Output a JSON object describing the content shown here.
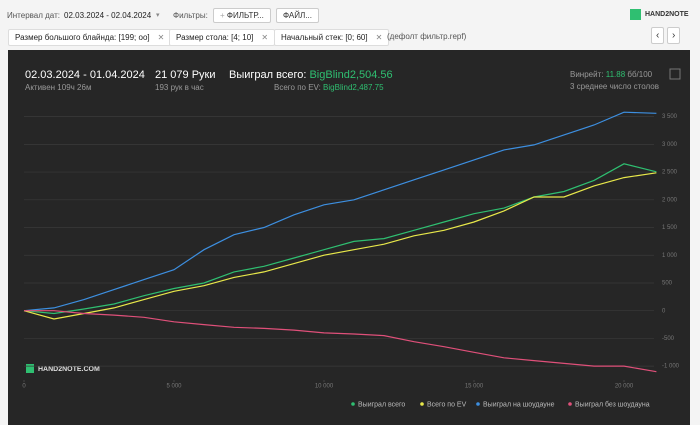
{
  "toolbar": {
    "date_label": "Интервал дат:",
    "date_range": "02.03.2024 - 02.04.2024",
    "filters_label": "Фильтры:",
    "filter_button": "ФИЛЬТР...",
    "file_button": "ФАЙЛ...",
    "logo": "HAND2NOTE"
  },
  "filters": {
    "chips": [
      "Размер большого блайнда: [199; oo]",
      "Размер стола: [4; 10]",
      "Начальный стек: [0; 60]"
    ],
    "preset": "(дефолт фильтр.repf)"
  },
  "summary": {
    "period": "02.03.2024 - 01.04.2024",
    "active": "Активен 109ч 26м",
    "hands": "21 079 Руки",
    "hands_per_hour": "193 рук в час",
    "won_label": "Выиграл всего:",
    "won_value": "BigBlind2,504.56",
    "ev_label": "Всего по EV:",
    "ev_value": "BigBlind2,487.75",
    "winrate_label": "Винрейт:",
    "winrate_value": "11.88",
    "winrate_unit": "бб/100",
    "tables": "3 среднее число столов"
  },
  "chart_data": {
    "type": "line",
    "watermark": "HAND2NOTE.COM",
    "x": [
      0,
      1000,
      2000,
      3000,
      4000,
      5000,
      6000,
      7000,
      8000,
      9000,
      10000,
      11000,
      12000,
      13000,
      14000,
      15000,
      16000,
      17000,
      18000,
      19000,
      20000,
      21079
    ],
    "xlim": [
      0,
      21200
    ],
    "xticks": [
      0,
      {
        "value": 5000,
        "label": "5 000"
      },
      {
        "value": 10000,
        "label": "10 000"
      },
      {
        "value": 15000,
        "label": "15 000"
      },
      {
        "value": 20000,
        "label": "20 000"
      }
    ],
    "ylim": [
      -1250,
      3800
    ],
    "yticks": [
      {
        "value": -1000,
        "label": "-1 000"
      },
      -500,
      0,
      500,
      {
        "value": 1000,
        "label": "1 000"
      },
      {
        "value": 1500,
        "label": "1 500"
      },
      {
        "value": 2000,
        "label": "2 000"
      },
      {
        "value": 2500,
        "label": "2 500"
      },
      {
        "value": 3000,
        "label": "3 000"
      },
      {
        "value": 3500,
        "label": "3 500"
      }
    ],
    "grid": true,
    "series": [
      {
        "name": "Выиграл всего",
        "color": "#2fbf71",
        "values": [
          0,
          -50,
          30,
          120,
          270,
          400,
          500,
          700,
          800,
          950,
          1100,
          1250,
          1300,
          1450,
          1600,
          1750,
          1850,
          2050,
          2150,
          2350,
          2650,
          2504.56
        ]
      },
      {
        "name": "Всего по EV",
        "color": "#e8e84a",
        "values": [
          0,
          -150,
          -50,
          50,
          200,
          350,
          450,
          600,
          700,
          850,
          1000,
          1100,
          1200,
          1350,
          1450,
          1600,
          1800,
          2050,
          2050,
          2250,
          2400,
          2487.75
        ]
      },
      {
        "name": "Выиграл на шоудауне",
        "color": "#3d8fe0",
        "values": [
          0,
          50,
          200,
          380,
          560,
          740,
          1100,
          1370,
          1500,
          1730,
          1910,
          2000,
          2180,
          2360,
          2540,
          2720,
          2900,
          2990,
          3170,
          3350,
          3580,
          3560
        ]
      },
      {
        "name": "Выиграл без шоудауна",
        "color": "#e0507a",
        "values": [
          0,
          0,
          -50,
          -80,
          -120,
          -200,
          -250,
          -300,
          -320,
          -350,
          -400,
          -420,
          -450,
          -560,
          -650,
          -750,
          -850,
          -900,
          -950,
          -1000,
          -1000,
          -1100
        ]
      }
    ]
  }
}
